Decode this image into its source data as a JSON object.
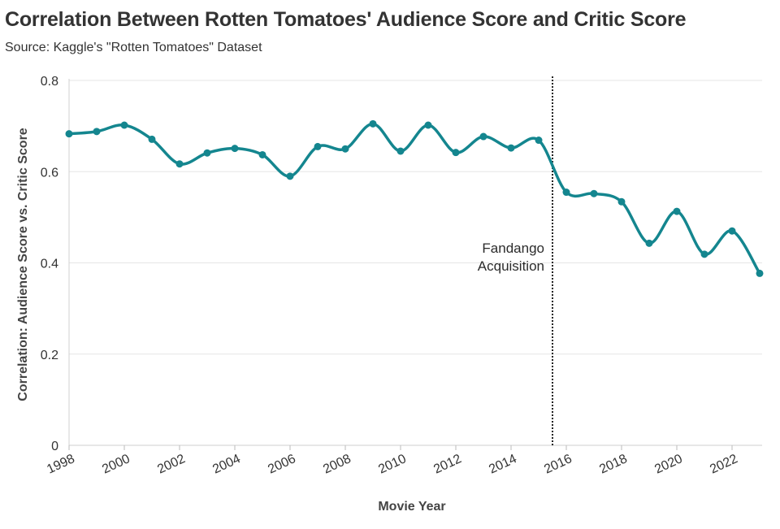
{
  "chart_data": {
    "type": "line",
    "title": "Correlation Between Rotten Tomatoes' Audience Score and Critic Score",
    "subtitle": "Source: Kaggle's \"Rotten Tomatoes\" Dataset",
    "xlabel": "Movie Year",
    "ylabel": "Correlation: Audience Score vs. Critic Score",
    "xlim": [
      1998,
      2023
    ],
    "ylim": [
      0,
      0.8
    ],
    "x_ticks": [
      "1998",
      "2000",
      "2002",
      "2004",
      "2006",
      "2008",
      "2010",
      "2012",
      "2014",
      "2016",
      "2018",
      "2020",
      "2022"
    ],
    "y_ticks": [
      "0",
      "0.2",
      "0.4",
      "0.6",
      "0.8"
    ],
    "grid": "horizontal",
    "series": [
      {
        "color": "#14868f",
        "x": [
          1998,
          1999,
          2000,
          2001,
          2002,
          2003,
          2004,
          2005,
          2006,
          2007,
          2008,
          2009,
          2010,
          2011,
          2012,
          2013,
          2014,
          2015,
          2016,
          2017,
          2018,
          2019,
          2020,
          2021,
          2022,
          2023
        ],
        "y": [
          0.683,
          0.688,
          0.702,
          0.671,
          0.617,
          0.641,
          0.651,
          0.637,
          0.59,
          0.655,
          0.65,
          0.705,
          0.645,
          0.702,
          0.642,
          0.677,
          0.652,
          0.669,
          0.555,
          0.552,
          0.534,
          0.443,
          0.513,
          0.419,
          0.47,
          0.377
        ]
      }
    ],
    "annotations": [
      {
        "x": 2015.5,
        "label_line1": "Fandango",
        "label_line2": "Acquisition",
        "style": "dotted-vertical-line"
      }
    ]
  }
}
